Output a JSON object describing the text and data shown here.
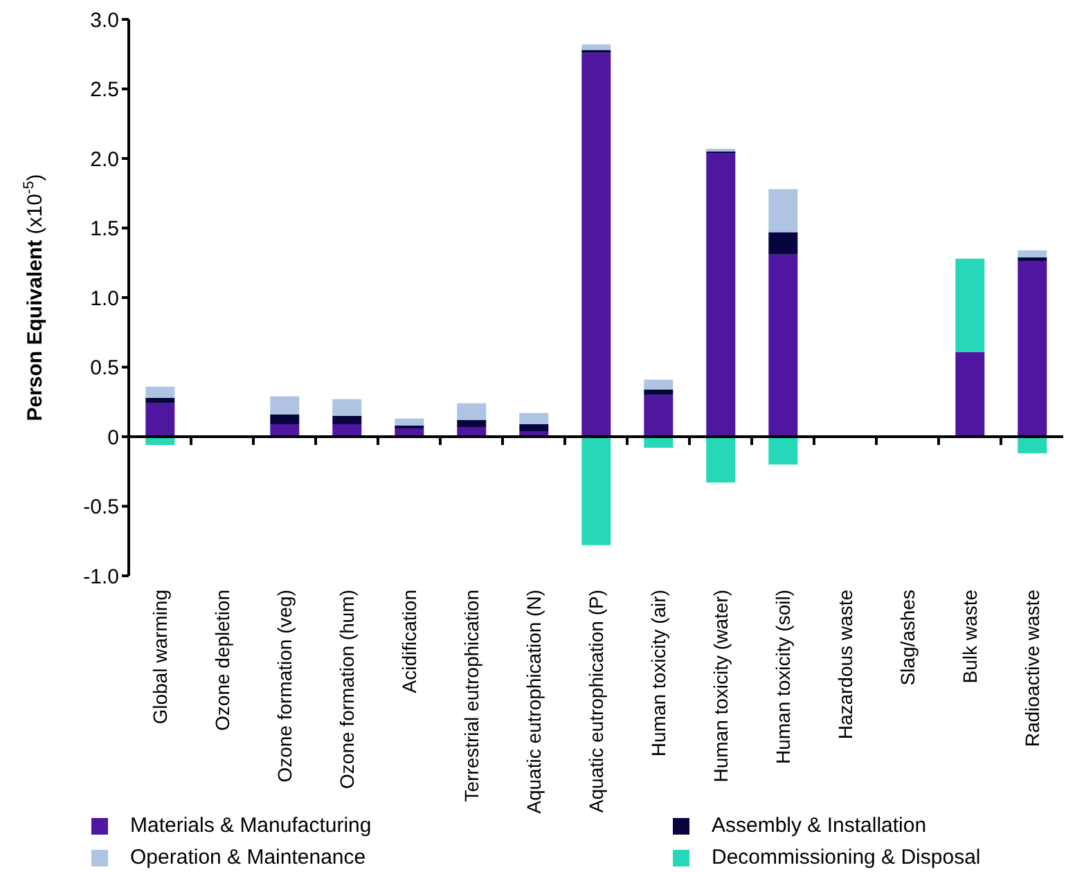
{
  "chart_data": {
    "type": "bar",
    "stacked": true,
    "ylabel": "Person Equivalent (x10$^{-5}$)",
    "categories": [
      "Global warming",
      "Ozone depletion",
      "Ozone formation (veg)",
      "Ozone formation (hum)",
      "Acidification",
      "Terrestrial eutrophication",
      "Aquatic eutrophication (N)",
      "Aquatic eutrophication (P)",
      "Human toxicity (air)",
      "Human toxicity (water)",
      "Human toxicity (soil)",
      "Hazardous waste",
      "Slag/ashes",
      "Bulk waste",
      "Radioactive waste"
    ],
    "series": [
      {
        "name": "Materials & Manufacturing",
        "color": "#4f16a0",
        "values": [
          0.24,
          0,
          0.09,
          0.09,
          0.06,
          0.07,
          0.04,
          2.76,
          0.3,
          2.04,
          1.31,
          0,
          0,
          0.61,
          1.26
        ]
      },
      {
        "name": "Assembly & Installation",
        "color": "#070540",
        "values": [
          0.04,
          0,
          0.07,
          0.06,
          0.02,
          0.05,
          0.05,
          0.02,
          0.04,
          0.01,
          0.16,
          0,
          0,
          0,
          0.03
        ]
      },
      {
        "name": "Operation & Maintenance",
        "color": "#aec4e2",
        "values": [
          0.08,
          0,
          0.13,
          0.12,
          0.05,
          0.12,
          0.08,
          0.04,
          0.07,
          0.02,
          0.31,
          0,
          0,
          0,
          0.05
        ]
      },
      {
        "name": "Decommissioning & Disposal",
        "color": "#26d8b8",
        "values": [
          -0.06,
          0,
          0,
          0,
          0,
          0,
          0,
          -0.78,
          -0.08,
          -0.33,
          -0.2,
          0,
          0,
          0.67,
          -0.12
        ]
      }
    ],
    "ylim": [
      -1,
      3
    ],
    "yticks": [
      {
        "value": -1,
        "label": "-1.0"
      },
      -0.5,
      0,
      0.5,
      {
        "value": 1,
        "label": "1.0"
      },
      1.5,
      {
        "value": 2,
        "label": "2.0"
      },
      2.5,
      {
        "value": 3,
        "label": "3.0"
      }
    ],
    "ref_lines": [
      {
        "axis": "y",
        "value": 0,
        "color": "#000000"
      }
    ],
    "grid": false,
    "legend": "bottom"
  }
}
